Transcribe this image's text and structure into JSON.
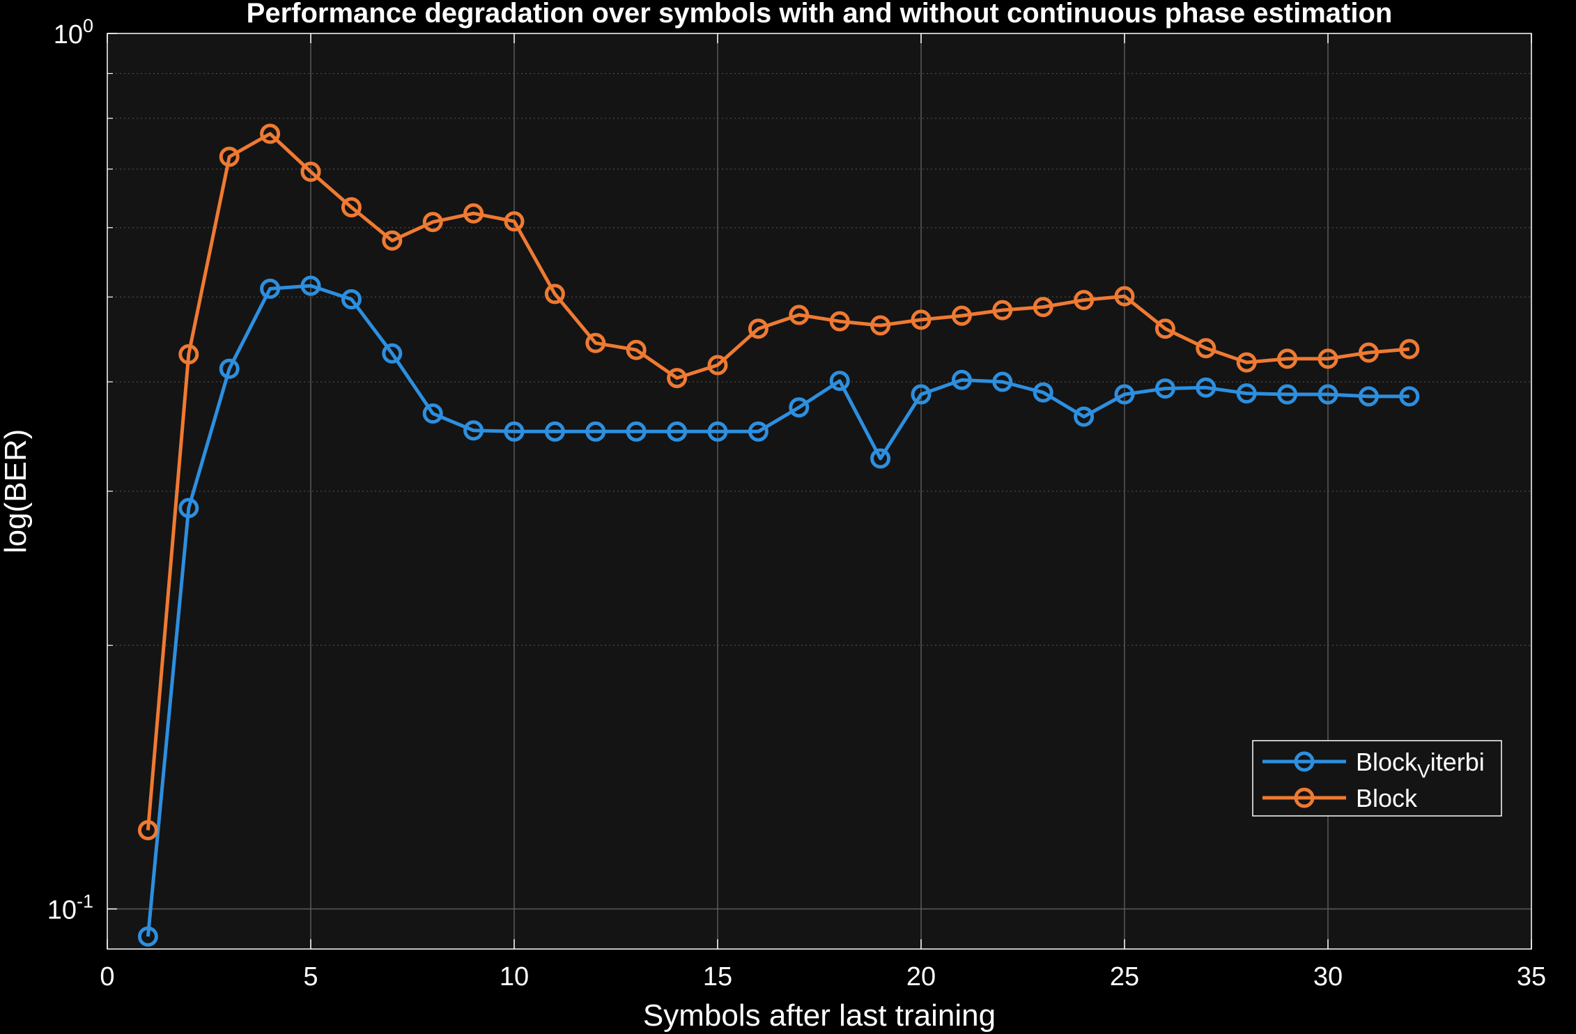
{
  "chart_data": {
    "type": "line",
    "title": "Performance degradation over symbols with and without continuous phase estimation",
    "xlabel": "Symbols after last training",
    "ylabel": "log(BER)",
    "xlim": [
      0,
      35
    ],
    "ylim": [
      0.09,
      1
    ],
    "yscale": "log",
    "x_ticks": [
      "0",
      "5",
      "10",
      "15",
      "20",
      "25",
      "30",
      "35"
    ],
    "y_ticks": [
      {
        "value": 1,
        "base": "10",
        "exp": "0"
      },
      {
        "value": 0.1,
        "base": "10",
        "exp": "-1"
      }
    ],
    "grid": true,
    "legend_position": "bottom-right",
    "x": [
      1,
      2,
      3,
      4,
      5,
      6,
      7,
      8,
      9,
      10,
      11,
      12,
      13,
      14,
      15,
      16,
      17,
      18,
      19,
      20,
      21,
      22,
      23,
      24,
      25,
      26,
      27,
      28,
      29,
      30,
      31,
      32
    ],
    "series": [
      {
        "name": "Block_Viterbi",
        "legend_main": "Block",
        "legend_sub": "V",
        "legend_rest": "iterbi",
        "color": "#2d8fdf",
        "marker": "circle",
        "values": [
          0.093,
          0.287,
          0.414,
          0.511,
          0.515,
          0.497,
          0.431,
          0.368,
          0.352,
          0.351,
          0.351,
          0.351,
          0.351,
          0.351,
          0.351,
          0.351,
          0.374,
          0.401,
          0.327,
          0.387,
          0.402,
          0.4,
          0.389,
          0.365,
          0.387,
          0.393,
          0.394,
          0.388,
          0.387,
          0.387,
          0.385,
          0.385
        ]
      },
      {
        "name": "Block",
        "legend_main": "Block",
        "legend_sub": "",
        "legend_rest": "",
        "color": "#ef7a32",
        "marker": "circle",
        "values": [
          0.123,
          0.43,
          0.723,
          0.768,
          0.695,
          0.633,
          0.58,
          0.609,
          0.623,
          0.61,
          0.504,
          0.443,
          0.435,
          0.404,
          0.418,
          0.46,
          0.477,
          0.469,
          0.464,
          0.471,
          0.476,
          0.483,
          0.487,
          0.496,
          0.501,
          0.46,
          0.437,
          0.421,
          0.425,
          0.425,
          0.432,
          0.436
        ]
      }
    ]
  }
}
